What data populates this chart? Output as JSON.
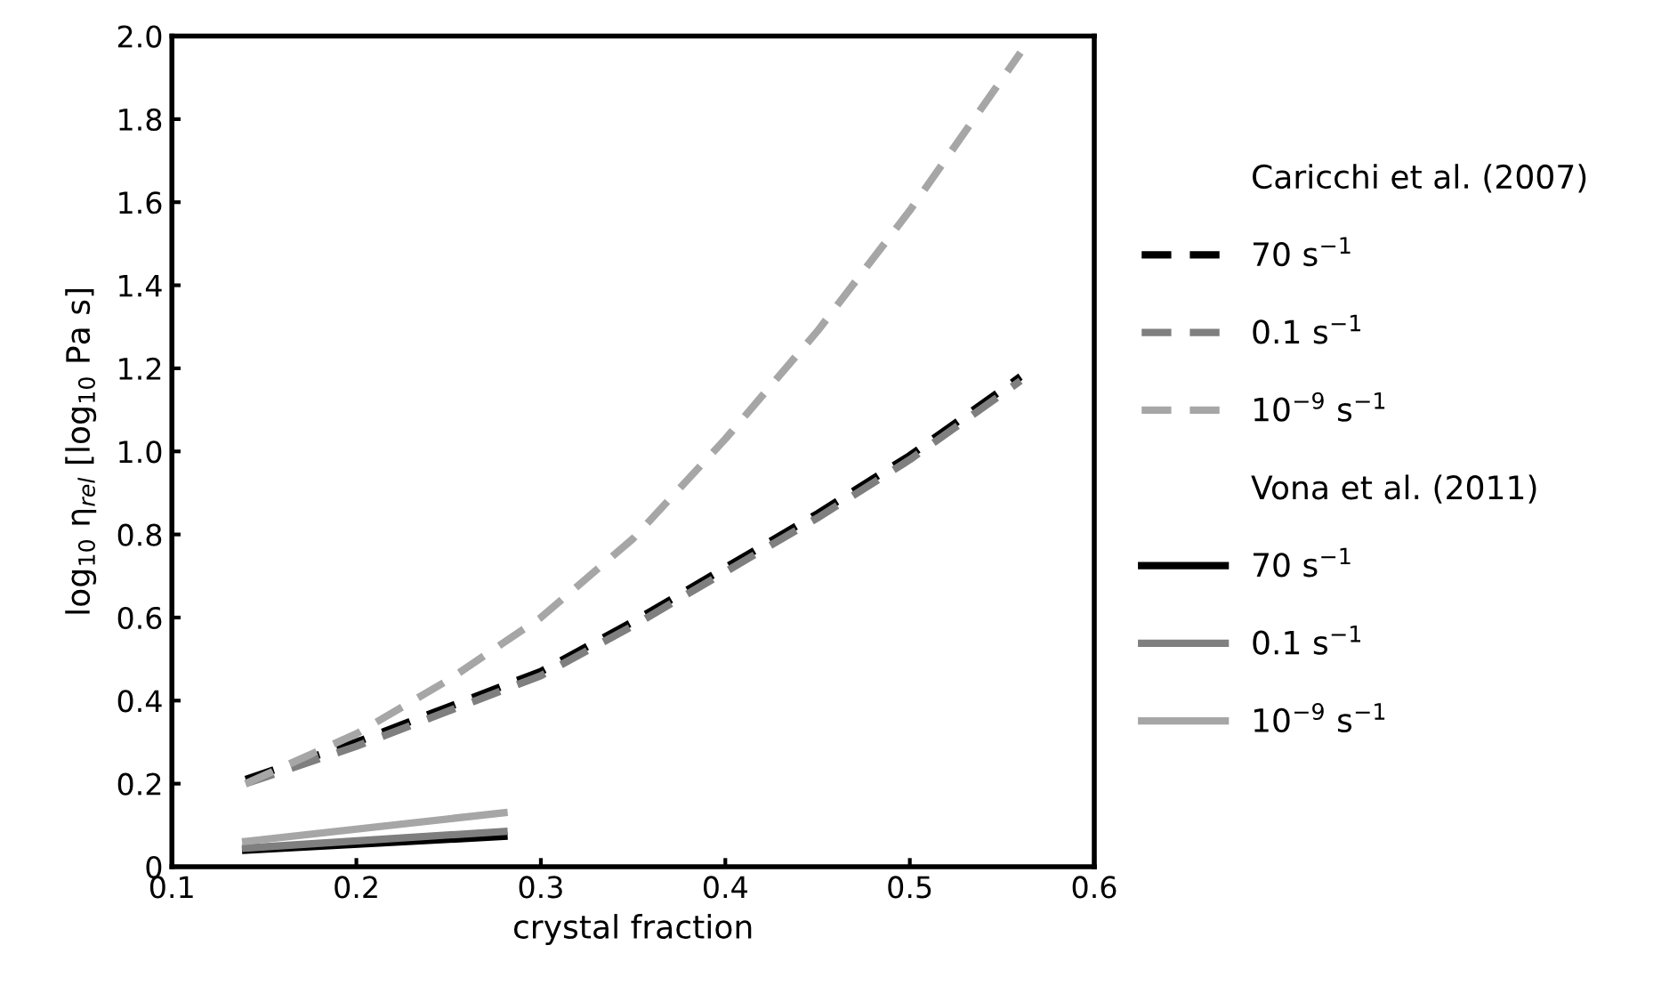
{
  "chart_data": {
    "type": "line",
    "xlabel": "crystal fraction",
    "ylabel": "log$_{10}$ η$_{rel}$ [log$_{10}$ Pa s]",
    "annotations": [
      "Caricchi et al. (2007)",
      "Vona et al. (2011)"
    ],
    "xlim": [
      0.1,
      0.6
    ],
    "xticks": [
      0.1,
      0.2,
      0.3,
      0.4,
      0.5,
      0.6
    ],
    "ylim": [
      0,
      2.0
    ],
    "yticks": [
      0,
      0.2,
      0.4,
      0.6,
      0.8,
      {
        "value": 1.0,
        "label": "1.0"
      },
      1.2,
      1.4,
      1.6,
      1.8,
      {
        "value": 2.0,
        "label": "2.0"
      }
    ],
    "grid": false,
    "legend": "right",
    "series": [
      {
        "name": "70 s$^{−1}$",
        "color": "#000000",
        "line_style": "dashed",
        "x": [
          0.14,
          0.2,
          0.25,
          0.3,
          0.35,
          0.4,
          0.45,
          0.5,
          0.56
        ],
        "values": [
          0.21,
          0.3,
          0.385,
          0.47,
          0.59,
          0.72,
          0.85,
          0.99,
          1.18
        ]
      },
      {
        "name": "0.1 s$^{−1}$",
        "color": "#7f7f7f",
        "line_style": "dashed",
        "x": [
          0.14,
          0.2,
          0.25,
          0.3,
          0.35,
          0.4,
          0.45,
          0.5,
          0.56
        ],
        "values": [
          0.2,
          0.29,
          0.375,
          0.46,
          0.58,
          0.71,
          0.84,
          0.98,
          1.17
        ]
      },
      {
        "name": "10$^{−9}$ s$^{−1}$",
        "color": "#a6a6a6",
        "line_style": "dashed",
        "x": [
          0.14,
          0.2,
          0.25,
          0.3,
          0.35,
          0.4,
          0.45,
          0.5,
          0.56
        ],
        "values": [
          0.2,
          0.32,
          0.45,
          0.6,
          0.79,
          1.03,
          1.29,
          1.58,
          1.96
        ]
      },
      {
        "name": "70 s$^{−1}$",
        "color": "#000000",
        "line_style": "solid",
        "x": [
          0.14,
          0.28
        ],
        "values": [
          0.04,
          0.073
        ]
      },
      {
        "name": "0.1 s$^{−1}$",
        "color": "#7f7f7f",
        "line_style": "solid",
        "x": [
          0.14,
          0.28
        ],
        "values": [
          0.045,
          0.085
        ]
      },
      {
        "name": "10$^{−9}$ s$^{−1}$",
        "color": "#a6a6a6",
        "line_style": "solid",
        "x": [
          0.14,
          0.28
        ],
        "values": [
          0.061,
          0.13
        ]
      }
    ]
  }
}
